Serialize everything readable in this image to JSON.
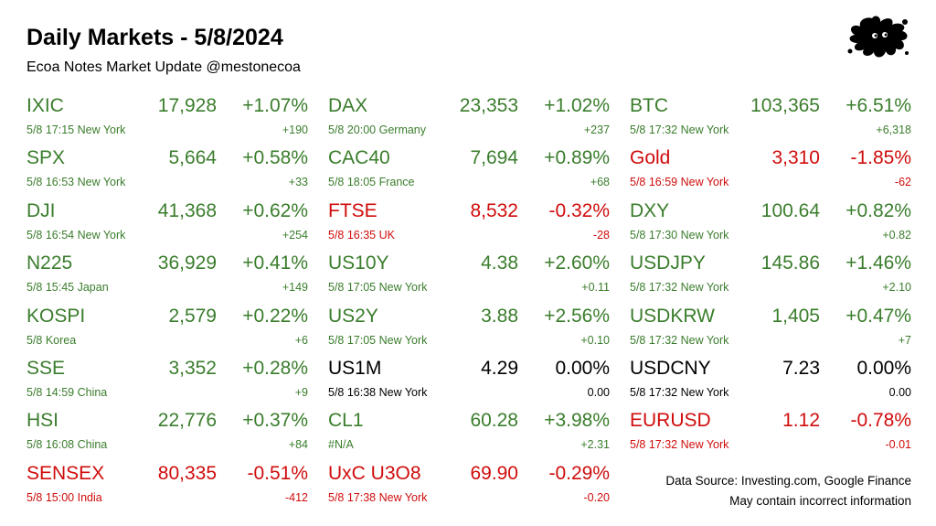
{
  "header": {
    "title": "Daily Markets - 5/8/2024",
    "subtitle": "Ecoa Notes Market Update @mestonecoa"
  },
  "colors": {
    "up": "#3a7d2c",
    "down": "#d00c0c",
    "flat": "#000000"
  },
  "logo": {
    "icon": "ink-splat-icon",
    "color": "#000000"
  },
  "columns": [
    [
      {
        "symbol": "IXIC",
        "price": "17,928",
        "pct": "+1.07%",
        "meta": "5/8 17:15 New York",
        "change": "+190",
        "trend": "up"
      },
      {
        "symbol": "SPX",
        "price": "5,664",
        "pct": "+0.58%",
        "meta": "5/8 16:53 New York",
        "change": "+33",
        "trend": "up"
      },
      {
        "symbol": "DJI",
        "price": "41,368",
        "pct": "+0.62%",
        "meta": "5/8 16:54 New York",
        "change": "+254",
        "trend": "up"
      },
      {
        "symbol": "N225",
        "price": "36,929",
        "pct": "+0.41%",
        "meta": "5/8 15:45 Japan",
        "change": "+149",
        "trend": "up"
      },
      {
        "symbol": "KOSPI",
        "price": "2,579",
        "pct": "+0.22%",
        "meta": "5/8  Korea",
        "change": "+6",
        "trend": "up"
      },
      {
        "symbol": "SSE",
        "price": "3,352",
        "pct": "+0.28%",
        "meta": "5/8 14:59 China",
        "change": "+9",
        "trend": "up"
      },
      {
        "symbol": "HSI",
        "price": "22,776",
        "pct": "+0.37%",
        "meta": "5/8 16:08 China",
        "change": "+84",
        "trend": "up"
      },
      {
        "symbol": "SENSEX",
        "price": "80,335",
        "pct": "-0.51%",
        "meta": "5/8 15:00 India",
        "change": "-412",
        "trend": "down"
      }
    ],
    [
      {
        "symbol": "DAX",
        "price": "23,353",
        "pct": "+1.02%",
        "meta": "5/8 20:00 Germany",
        "change": "+237",
        "trend": "up"
      },
      {
        "symbol": "CAC40",
        "price": "7,694",
        "pct": "+0.89%",
        "meta": "5/8 18:05 France",
        "change": "+68",
        "trend": "up"
      },
      {
        "symbol": "FTSE",
        "price": "8,532",
        "pct": "-0.32%",
        "meta": "5/8 16:35 UK",
        "change": "-28",
        "trend": "down"
      },
      {
        "symbol": "US10Y",
        "price": "4.38",
        "pct": "+2.60%",
        "meta": "5/8 17:05 New York",
        "change": "+0.11",
        "trend": "up"
      },
      {
        "symbol": "US2Y",
        "price": "3.88",
        "pct": "+2.56%",
        "meta": "5/8 17:05 New York",
        "change": "+0.10",
        "trend": "up"
      },
      {
        "symbol": "US1M",
        "price": "4.29",
        "pct": "0.00%",
        "meta": "5/8 16:38 New York",
        "change": "0.00",
        "trend": "flat"
      },
      {
        "symbol": "CL1",
        "price": "60.28",
        "pct": "+3.98%",
        "meta": "#N/A",
        "change": "+2.31",
        "trend": "up"
      },
      {
        "symbol": "UxC U3O8",
        "price": "69.90",
        "pct": "-0.29%",
        "meta": "5/8 17:38 New York",
        "change": "-0.20",
        "trend": "down"
      }
    ],
    [
      {
        "symbol": "BTC",
        "price": "103,365",
        "pct": "+6.51%",
        "meta": "5/8 17:32 New York",
        "change": "+6,318",
        "trend": "up"
      },
      {
        "symbol": "Gold",
        "price": "3,310",
        "pct": "-1.85%",
        "meta": "5/8 16:59 New York",
        "change": "-62",
        "trend": "down"
      },
      {
        "symbol": "DXY",
        "price": "100.64",
        "pct": "+0.82%",
        "meta": "5/8 17:30 New York",
        "change": "+0.82",
        "trend": "up"
      },
      {
        "symbol": "USDJPY",
        "price": "145.86",
        "pct": "+1.46%",
        "meta": "5/8 17:32 New York",
        "change": "+2.10",
        "trend": "up"
      },
      {
        "symbol": "USDKRW",
        "price": "1,405",
        "pct": "+0.47%",
        "meta": "5/8 17:32 New York",
        "change": "+7",
        "trend": "up"
      },
      {
        "symbol": "USDCNY",
        "price": "7.23",
        "pct": "0.00%",
        "meta": "5/8 17:32 New York",
        "change": "0.00",
        "trend": "flat"
      },
      {
        "symbol": "EURUSD",
        "price": "1.12",
        "pct": "-0.78%",
        "meta": "5/8 17:32 New York",
        "change": "-0.01",
        "trend": "down"
      }
    ]
  ],
  "footer": {
    "source": "Data Source: Investing.com, Google Finance",
    "disclaimer": "May contain incorrect information"
  }
}
